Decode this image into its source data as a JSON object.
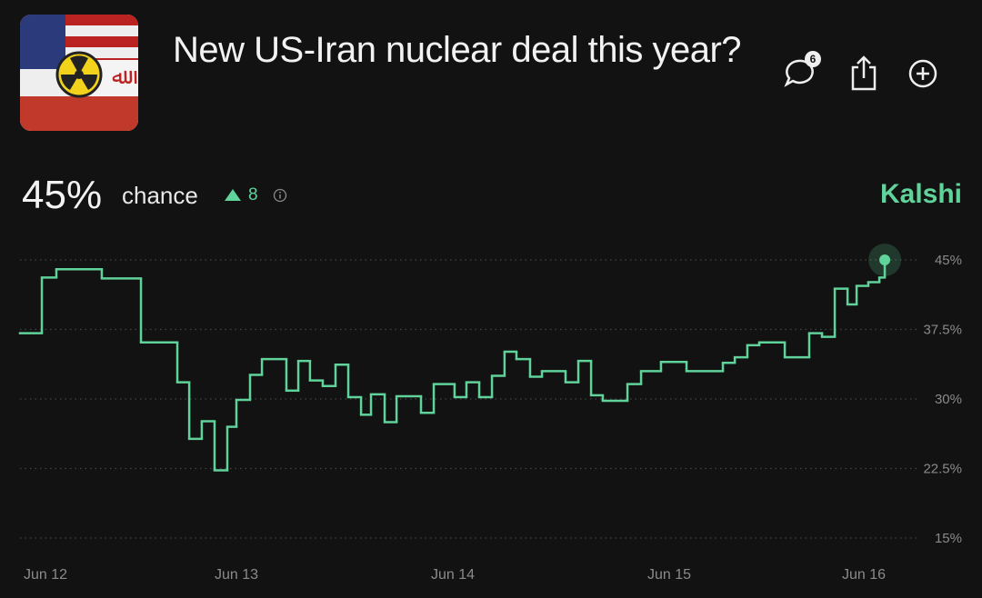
{
  "header": {
    "title": "New US-Iran nuclear deal this year?",
    "comment_count": "6"
  },
  "summary": {
    "chance": "45%",
    "chance_label": "chance",
    "change": "8",
    "source": "Kalshi"
  },
  "chart_data": {
    "type": "line",
    "step": true,
    "color": "#5fd39a",
    "x": [
      12.0,
      12.101,
      12.168,
      12.378,
      12.559,
      12.727,
      12.782,
      12.84,
      12.899,
      12.958,
      13.0,
      13.063,
      13.118,
      13.231,
      13.286,
      13.34,
      13.399,
      13.458,
      13.517,
      13.576,
      13.622,
      13.685,
      13.74,
      13.853,
      13.912,
      14.008,
      14.063,
      14.122,
      14.181,
      14.239,
      14.294,
      14.357,
      14.412,
      14.521,
      14.58,
      14.639,
      14.693,
      14.807,
      14.87,
      14.962,
      15.08,
      15.248,
      15.303,
      15.361,
      15.416,
      15.534,
      15.647,
      15.706,
      15.765,
      15.824,
      15.866,
      15.92,
      15.971,
      15.996
    ],
    "values": [
      37.1,
      43.1,
      44.0,
      43.0,
      36.1,
      31.8,
      25.7,
      27.6,
      22.3,
      27.0,
      29.9,
      32.6,
      34.3,
      30.9,
      34.1,
      32.0,
      31.4,
      33.7,
      30.2,
      28.3,
      30.5,
      27.5,
      30.3,
      28.5,
      31.6,
      30.2,
      31.8,
      30.2,
      32.5,
      35.1,
      34.3,
      32.4,
      33.0,
      31.8,
      34.1,
      30.4,
      29.8,
      31.6,
      33.0,
      34.0,
      33.0,
      33.9,
      34.5,
      35.8,
      36.1,
      34.5,
      37.1,
      36.7,
      41.9,
      40.2,
      42.2,
      42.6,
      43.1,
      45
    ],
    "xlim": [
      12,
      16
    ],
    "xticks": [
      {
        "value": 12,
        "label": "Jun 12"
      },
      {
        "value": 13,
        "label": "Jun 13"
      },
      {
        "value": 14,
        "label": "Jun 14"
      },
      {
        "value": 15,
        "label": "Jun 15"
      },
      {
        "value": 16,
        "label": "Jun 16"
      }
    ],
    "ylim": [
      15,
      45
    ],
    "yticks": [
      {
        "value": 15,
        "label": "15%"
      },
      {
        "value": 22.5,
        "label": "22.5%"
      },
      {
        "value": 30,
        "label": "30%"
      },
      {
        "value": 37.5,
        "label": "37.5%"
      },
      {
        "value": 45,
        "label": "45%"
      }
    ],
    "grid": true
  }
}
